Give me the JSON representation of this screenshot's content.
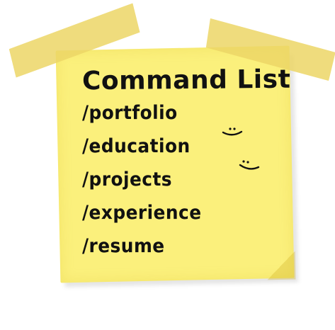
{
  "note": {
    "title": "Command List",
    "commands": [
      "/portfolio",
      "/education",
      "/projects",
      "/experience",
      "/resume"
    ]
  },
  "colors": {
    "note": "#fbf07c",
    "tape": "#ecd666",
    "ink": "#111111"
  },
  "icons": [
    "smiley-icon",
    "smiley-icon"
  ]
}
